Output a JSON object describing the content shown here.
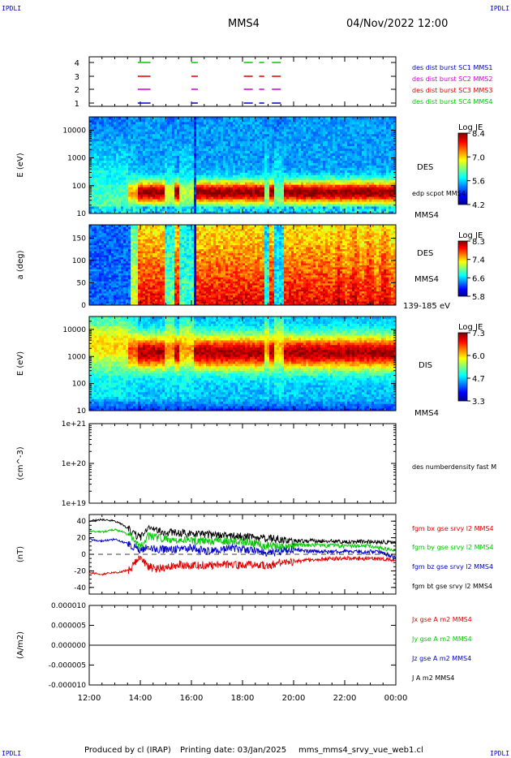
{
  "header": {
    "corner_left_top": "IPDLI",
    "corner_right_top": "IPDLI",
    "corner_left_bottom": "IPDLI",
    "corner_right_bottom": "IPDLI",
    "title": "MMS4",
    "datetime": "04/Nov/2022 12:00"
  },
  "footer": {
    "produced_by": "Produced by cl (IRAP)",
    "printing_date": "Printing date: 03/Jan/2025",
    "filename": "mms_mms4_srvy_vue_web1.cl"
  },
  "colors": {
    "red": "#e00000",
    "green": "#00c800",
    "blue": "#0000c8",
    "magenta": "#d000d0",
    "black": "#000000"
  },
  "chart_data": [
    {
      "type": "timeline",
      "panel": "burst",
      "yticks": [
        "1",
        "2",
        "3",
        "4"
      ],
      "legend": [
        {
          "label": "des dist burst SC1 MMS1",
          "color": "#0000c8"
        },
        {
          "label": "des dist burst SC2 MMS2",
          "color": "#d000d0"
        },
        {
          "label": "des dist burst SC3 MMS3",
          "color": "#e00000"
        },
        {
          "label": "des dist burst SC4 MMS4",
          "color": "#00c800"
        }
      ],
      "intervals_hours": [
        [
          13.9,
          14.4
        ],
        [
          16.0,
          16.25
        ],
        [
          18.05,
          18.4
        ],
        [
          18.65,
          18.85
        ],
        [
          19.15,
          19.5
        ]
      ]
    },
    {
      "type": "heatmap",
      "panel": "des_energy",
      "ylabel": "E (eV)",
      "yscale": "log",
      "ylim": [
        10,
        30000
      ],
      "yticks": [
        "10",
        "100",
        "1000",
        "10000"
      ],
      "colorbar": {
        "title": "Log JE",
        "ticks": [
          "8.4",
          "7.0",
          "5.6",
          "4.2"
        ]
      },
      "labels": [
        "DES",
        "edp scpot MMS4",
        "MMS4"
      ]
    },
    {
      "type": "heatmap",
      "panel": "des_pitch",
      "ylabel": "a (deg)",
      "ylim": [
        0,
        180
      ],
      "yticks": [
        "0",
        "50",
        "100",
        "150"
      ],
      "colorbar": {
        "title": "Log JE",
        "ticks": [
          "8.3",
          "7.4",
          "6.6",
          "5.8"
        ]
      },
      "labels": [
        "DES",
        "MMS4",
        "139-185 eV"
      ]
    },
    {
      "type": "heatmap",
      "panel": "dis_energy",
      "ylabel": "E (eV)",
      "yscale": "log",
      "ylim": [
        10,
        30000
      ],
      "yticks": [
        "10",
        "100",
        "1000",
        "10000"
      ],
      "colorbar": {
        "title": "Log JE",
        "ticks": [
          "7.3",
          "6.0",
          "4.7",
          "3.3"
        ]
      },
      "labels": [
        "DIS",
        "MMS4"
      ]
    },
    {
      "type": "line",
      "panel": "density",
      "ylabel": "(cm^-3)",
      "yscale": "log",
      "ylim": [
        1e+19,
        1e+21
      ],
      "yticks": [
        "1e+19",
        "1e+20",
        "1e+21"
      ],
      "series": [
        {
          "name": "des numberdensity fast M",
          "color": "#000000",
          "values": []
        }
      ]
    },
    {
      "type": "line",
      "panel": "fgm",
      "ylabel": "(nT)",
      "ylim": [
        -48,
        48
      ],
      "yticks": [
        "-40",
        "-20",
        "0",
        "20",
        "40"
      ],
      "x_hours": [
        12.0,
        12.5,
        13.0,
        13.3,
        13.6,
        13.8,
        14.0,
        14.3,
        14.6,
        15.0,
        15.5,
        16.0,
        16.5,
        17.0,
        17.5,
        18.0,
        18.5,
        19.0,
        19.5,
        20.0,
        20.5,
        21.0,
        22.0,
        23.0,
        23.5,
        24.0
      ],
      "series": [
        {
          "name": "fgm bx gse srvy l2 MMS4",
          "color": "#e00000",
          "values": [
            -22,
            -24,
            -22,
            -21,
            -18,
            -10,
            -4,
            -14,
            -18,
            -15,
            -12,
            -14,
            -13,
            -13,
            -12,
            -13,
            -12,
            -14,
            -10,
            -9,
            -7,
            -6,
            -5,
            -5,
            -6,
            -7
          ]
        },
        {
          "name": "fgm by gse srvy l2 MMS4",
          "color": "#00c800",
          "values": [
            28,
            27,
            30,
            27,
            22,
            14,
            8,
            22,
            20,
            18,
            17,
            16,
            17,
            16,
            16,
            15,
            13,
            10,
            9,
            11,
            11,
            11,
            10,
            10,
            7,
            4
          ]
        },
        {
          "name": "fgm bz gse srvy l2 MMS4",
          "color": "#0000c8",
          "values": [
            18,
            16,
            18,
            15,
            12,
            8,
            5,
            10,
            7,
            5,
            6,
            8,
            4,
            6,
            7,
            6,
            4,
            2,
            3,
            6,
            4,
            3,
            3,
            3,
            2,
            -4
          ]
        },
        {
          "name": "fgm bt gse srvy l2 MMS4",
          "color": "#000000",
          "values": [
            40,
            42,
            40,
            36,
            29,
            24,
            20,
            30,
            29,
            27,
            26,
            24,
            24,
            23,
            22,
            21,
            20,
            19,
            18,
            16,
            16,
            16,
            15,
            15,
            15,
            14
          ]
        }
      ]
    },
    {
      "type": "line",
      "panel": "current",
      "ylabel": "(A/m2)",
      "ylim": [
        -1e-05,
        1e-05
      ],
      "yticks": [
        "0.000010",
        "0.000005",
        "0.000000",
        "-0.000005",
        "-0.000010"
      ],
      "series": [
        {
          "name": "Jx gse A m2 MMS4",
          "color": "#e00000",
          "values": [
            0,
            0
          ]
        },
        {
          "name": "Jy gse A m2 MMS4",
          "color": "#00c800",
          "values": [
            0,
            0
          ]
        },
        {
          "name": "Jz gse A m2 MMS4",
          "color": "#0000c8",
          "values": [
            0,
            0
          ]
        },
        {
          "name": "J A m2 MMS4",
          "color": "#000000",
          "values": [
            0,
            0
          ]
        }
      ]
    }
  ],
  "time_axis": {
    "ticks_hours": [
      12,
      14,
      16,
      18,
      20,
      22,
      24
    ],
    "tick_labels": [
      "12:00",
      "14:00",
      "16:00",
      "18:00",
      "20:00",
      "22:00",
      "00:00"
    ]
  }
}
